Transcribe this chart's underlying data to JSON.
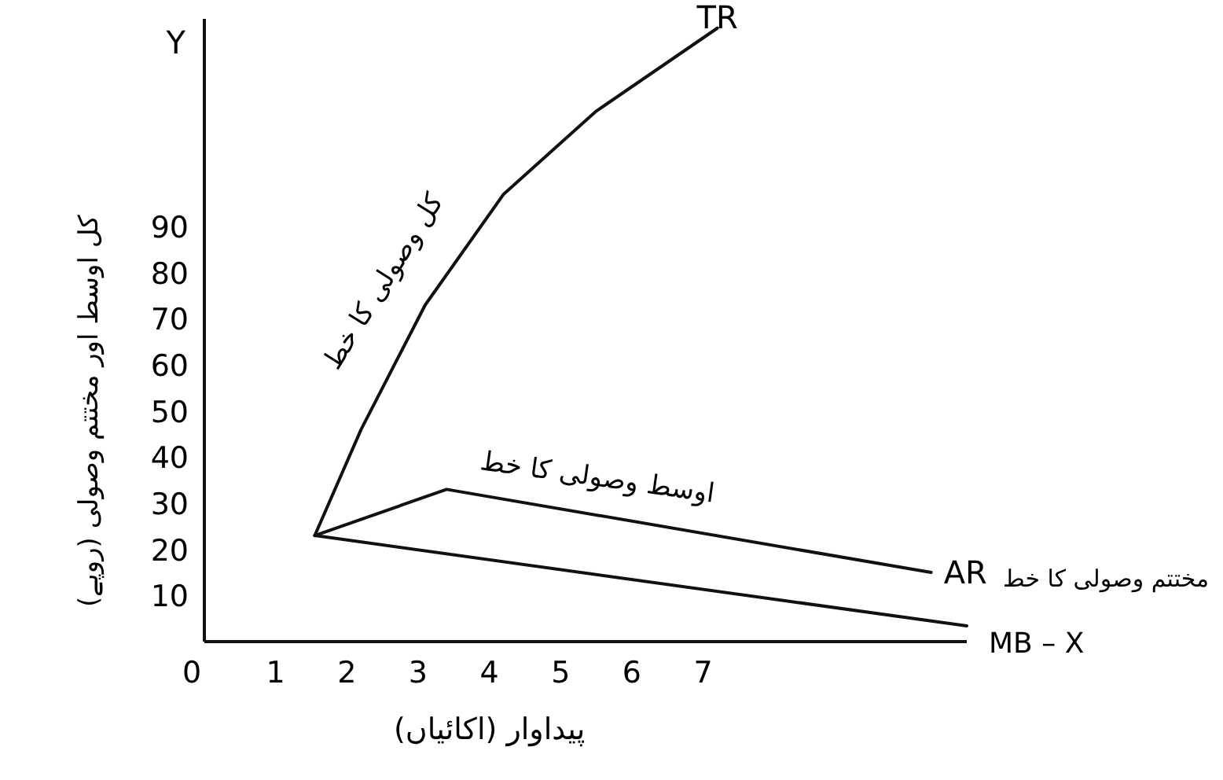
{
  "chart_data": {
    "type": "line",
    "xlabel": "پیداوار (اکائیاں)",
    "ylabel": "کل اوسط اور مختتم وصولی (روپے)",
    "xlim": [
      0,
      10.7
    ],
    "ylim": [
      0,
      135
    ],
    "xticks": [
      0,
      1,
      2,
      3,
      4,
      5,
      6,
      7
    ],
    "yticks": [
      10,
      20,
      30,
      40,
      50,
      60,
      70,
      80,
      90
    ],
    "grid": false,
    "legend": false,
    "marker": "none",
    "line_style": "solid",
    "series": [
      {
        "name": "TR",
        "color": "#111111",
        "x": [
          1.55,
          2.2,
          3.1,
          4.2,
          5.5,
          7.2
        ],
        "values": [
          23,
          46,
          73,
          97,
          115,
          133
        ]
      },
      {
        "name": "AR",
        "color": "#111111",
        "x": [
          1.55,
          3.4,
          10.2
        ],
        "values": [
          23,
          33,
          15
        ]
      },
      {
        "color": "#111111",
        "x": [
          1.55,
          10.7
        ],
        "values": [
          23,
          3.4
        ]
      }
    ],
    "annotations": [
      {
        "text": "کل وصولی کا خط",
        "x": 3.1,
        "y": 73
      },
      {
        "text": "اوسط وصولی کا خط",
        "x": 5.5,
        "y": 29
      },
      "Y",
      "MB – X",
      "مختتم وصولی کا خط"
    ]
  }
}
